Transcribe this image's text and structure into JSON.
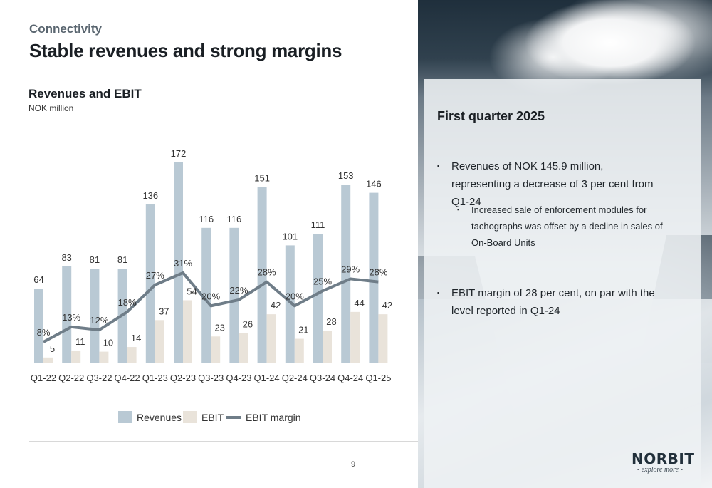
{
  "header": {
    "section": "Connectivity",
    "title": "Stable revenues and strong margins"
  },
  "chart_header": {
    "title": "Revenues and EBIT",
    "subtitle": "NOK million"
  },
  "chart_data": {
    "type": "bar",
    "title": "Revenues and EBIT",
    "subtitle": "NOK million",
    "categories": [
      "Q1-22",
      "Q2-22",
      "Q3-22",
      "Q4-22",
      "Q1-23",
      "Q2-23",
      "Q3-23",
      "Q4-23",
      "Q1-24",
      "Q2-24",
      "Q3-24",
      "Q4-24",
      "Q1-25"
    ],
    "series": [
      {
        "name": "Revenues",
        "kind": "bar",
        "color": "#b9c9d4",
        "values": [
          64,
          83,
          81,
          81,
          136,
          172,
          116,
          116,
          151,
          101,
          111,
          153,
          146
        ]
      },
      {
        "name": "EBIT",
        "kind": "bar",
        "color": "#e9e3da",
        "values": [
          5,
          11,
          10,
          14,
          37,
          54,
          23,
          26,
          42,
          21,
          28,
          44,
          42
        ]
      },
      {
        "name": "EBIT margin",
        "kind": "line",
        "color": "#6f7d88",
        "values": [
          8,
          13,
          12,
          18,
          27,
          31,
          20,
          22,
          28,
          20,
          25,
          29,
          28
        ],
        "labels": [
          "8%",
          "13%",
          "12%",
          "18%",
          "27%",
          "31%",
          "20%",
          "22%",
          "28%",
          "20%",
          "25%",
          "29%",
          "28%"
        ]
      }
    ],
    "ylim": [
      0,
      175
    ],
    "margin_ylim": [
      0,
      31
    ],
    "grid": false,
    "legend": "bottom"
  },
  "legend": {
    "revenues": "Revenues",
    "ebit": "EBIT",
    "margin": "EBIT margin"
  },
  "panel": {
    "title": "First quarter 2025",
    "bullets": [
      "Revenues of NOK 145.9 million, representing a decrease of 3 per cent from Q1-24",
      "Increased sale of enforcement modules for tachographs was offset by a decline in sales of On-Board Units",
      "EBIT margin of 28 per cent, on par with the level reported in Q1-24"
    ],
    "bullet_mark": "▪"
  },
  "footer": {
    "page": "9",
    "logo": "NORBIT",
    "tagline": "- explore more -"
  }
}
